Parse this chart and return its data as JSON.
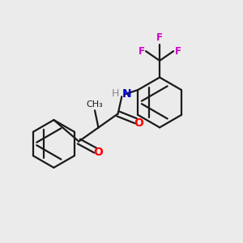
{
  "background_color": "#ebebeb",
  "bond_color": "#1a1a1a",
  "oxygen_color": "#ff0000",
  "nitrogen_color": "#0000cc",
  "fluorine_color": "#cc00cc",
  "hydrogen_color": "#888888",
  "line_width": 1.6,
  "figsize": [
    3.0,
    3.0
  ],
  "dpi": 100,
  "xlim": [
    0,
    10
  ],
  "ylim": [
    0,
    10
  ]
}
